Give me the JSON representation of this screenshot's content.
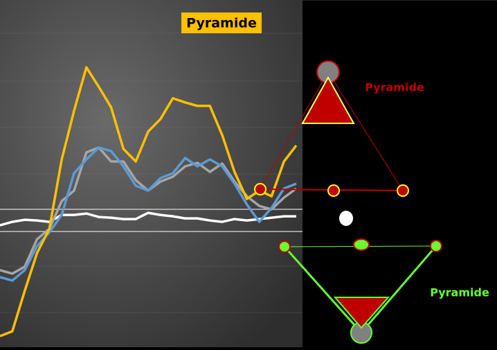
{
  "chart_data": {
    "type": "line",
    "title": "Pyramide",
    "annotations": [
      "Pyramide",
      "Pyramide"
    ],
    "categories": [
      null,
      null,
      null,
      null,
      null,
      null,
      null,
      null,
      null,
      null,
      null,
      null,
      null,
      null,
      null,
      null,
      null,
      null,
      null,
      null,
      null,
      null,
      null,
      null,
      null
    ],
    "ylim": [
      0,
      100
    ],
    "series": [
      {
        "color": "#ffc000",
        "values": [
          3.2,
          4.6,
          16.2,
          27.1,
          34.1,
          54.1,
          68.1,
          80.6,
          75,
          69.1,
          57.1,
          53.5,
          62.1,
          65.7,
          71.7,
          70.5,
          69.5,
          69.5,
          61.1,
          50.5,
          42.7,
          45.1,
          43.5,
          53.5,
          58.1
        ]
      },
      {
        "color": "#5b9bd5",
        "values": [
          20.2,
          19.2,
          22.2,
          29.1,
          33.1,
          38.1,
          50.1,
          54.1,
          57.5,
          56.5,
          52.1,
          46.5,
          45.1,
          48.7,
          50.1,
          54.5,
          52.1,
          54.1,
          52.1,
          47.1,
          41.1,
          36.1,
          40.1,
          45.7,
          47.1
        ]
      },
      {
        "color": "#a6a6a6",
        "values": [
          22.2,
          21.2,
          23.2,
          31.1,
          34.1,
          42.1,
          45.1,
          56.1,
          57.5,
          53.5,
          53.5,
          48.1,
          45.1,
          47.7,
          49.1,
          52.1,
          53.1,
          50.5,
          52.9,
          47.7,
          43.5,
          40.7,
          39.7,
          43.1,
          45.7
        ]
      },
      {
        "color": "#ffffff",
        "values": [
          35.1,
          36.1,
          36.7,
          36.5,
          36.1,
          38.1,
          38.1,
          38.5,
          37.5,
          37.3,
          36.9,
          36.9,
          38.7,
          38.1,
          37.7,
          37.1,
          37.1,
          36.5,
          36.1,
          36.9,
          36.5,
          36.9,
          37.3,
          37.7,
          37.7
        ]
      }
    ]
  }
}
